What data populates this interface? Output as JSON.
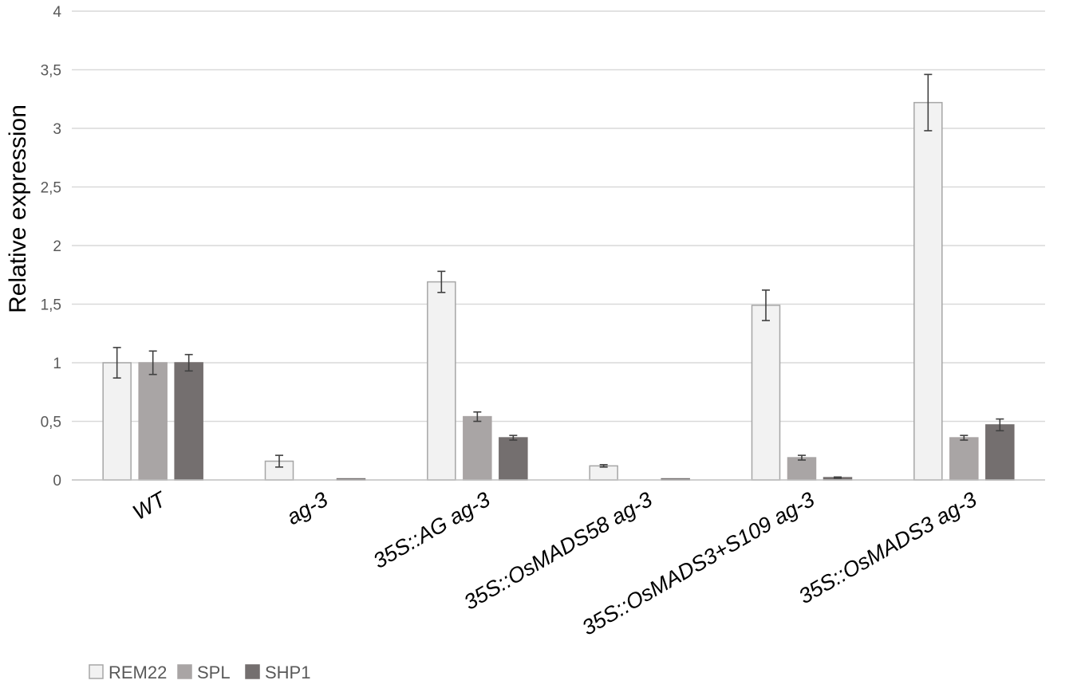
{
  "chart_data": {
    "type": "bar",
    "ylabel": "Relative expression",
    "ylim": [
      0,
      4
    ],
    "yticks": [
      "0",
      "0,5",
      "1",
      "1,5",
      "2",
      "2,5",
      "3",
      "3,5",
      "4"
    ],
    "categories": [
      "WT",
      "ag-3",
      "35S::AG ag-3",
      "35S::OsMADS58 ag-3",
      "35S::OsMADS3+S109 ag-3",
      "35S::OsMADS3 ag-3"
    ],
    "series": [
      {
        "name": "REM22",
        "color": "#f2f2f2",
        "stroke": "#a6a6a6",
        "values": [
          1.0,
          0.16,
          1.69,
          0.12,
          1.49,
          3.22
        ],
        "errors": [
          0.13,
          0.05,
          0.09,
          0.01,
          0.13,
          0.24
        ]
      },
      {
        "name": "SPL",
        "color": "#a9a5a5",
        "stroke": "#a9a5a5",
        "values": [
          1.0,
          0.0,
          0.54,
          0.0,
          0.19,
          0.36
        ],
        "errors": [
          0.1,
          0.0,
          0.04,
          0.0,
          0.02,
          0.02
        ]
      },
      {
        "name": "SHP1",
        "color": "#746f6f",
        "stroke": "#746f6f",
        "values": [
          1.0,
          0.01,
          0.36,
          0.01,
          0.02,
          0.47
        ],
        "errors": [
          0.07,
          0.0,
          0.02,
          0.0,
          0.005,
          0.05
        ]
      }
    ],
    "grid": true,
    "legend_position": "bottom-left"
  }
}
